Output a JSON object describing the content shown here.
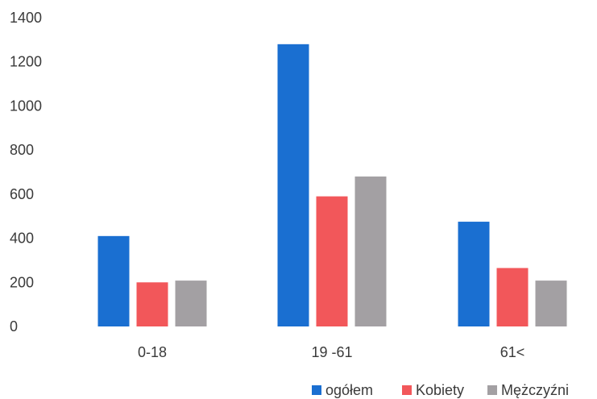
{
  "chart_data": {
    "type": "bar",
    "categories": [
      "0-18",
      "19 -61",
      "61<"
    ],
    "series": [
      {
        "name": "ogółem",
        "values": [
          410,
          1280,
          475
        ],
        "color": "#1a6fd1"
      },
      {
        "name": "Kobiety",
        "values": [
          200,
          590,
          265
        ],
        "color": "#f2575a"
      },
      {
        "name": "Mężczyźni",
        "values": [
          208,
          680,
          208
        ],
        "color": "#a3a0a3"
      }
    ],
    "ylim": [
      0,
      1400
    ],
    "yticks": [
      0,
      200,
      400,
      600,
      800,
      1000,
      1200,
      1400
    ],
    "grid": false,
    "legend_position": "bottom-right"
  }
}
